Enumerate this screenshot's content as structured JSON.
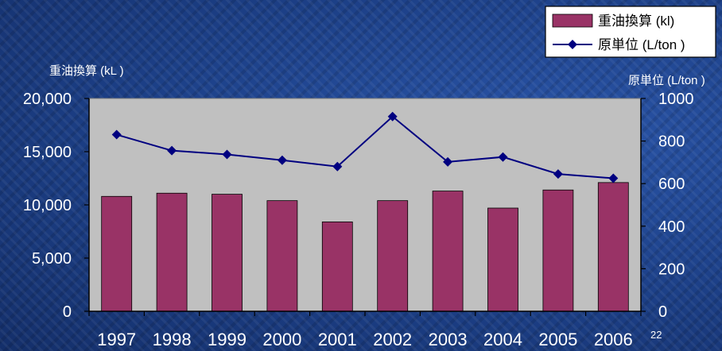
{
  "chart_data": {
    "type": "bar+line",
    "categories": [
      "1997",
      "1998",
      "1999",
      "2000",
      "2001",
      "2002",
      "2003",
      "2004",
      "2005",
      "2006"
    ],
    "series": [
      {
        "name": "重油換算 (kl)",
        "kind": "bar",
        "axis": "left",
        "color": "#993366",
        "values": [
          10800,
          11100,
          11000,
          10400,
          8400,
          10400,
          11300,
          9700,
          11400,
          12100
        ]
      },
      {
        "name": "原単位 (L/ton )",
        "kind": "line",
        "axis": "right",
        "color": "#000080",
        "values": [
          830,
          755,
          737,
          710,
          680,
          915,
          702,
          725,
          645,
          625
        ]
      }
    ],
    "left_axis": {
      "title": "重油換算 (kL )",
      "range": [
        0,
        20000
      ],
      "ticks": [
        "0",
        "5,000",
        "10,000",
        "15,000",
        "20,000"
      ]
    },
    "right_axis": {
      "title": "原単位 (L/ton )",
      "range": [
        0,
        1000
      ],
      "ticks": [
        "0",
        "200",
        "400",
        "600",
        "800",
        "1000"
      ]
    },
    "plot_background": "#c0c0c0",
    "legend_placement": "top-right",
    "grid": false
  },
  "page_number": "22"
}
